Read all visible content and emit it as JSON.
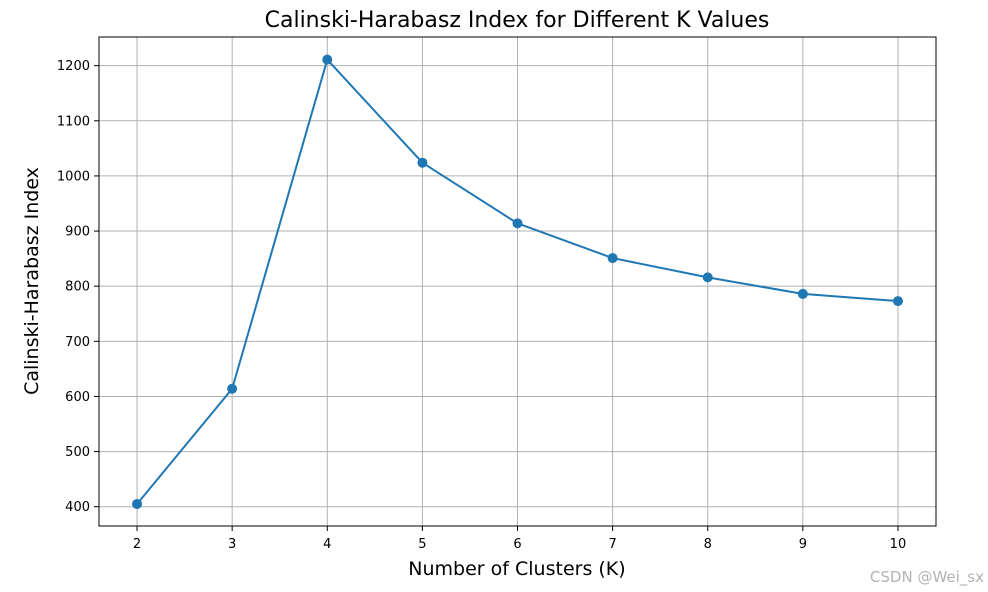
{
  "chart_data": {
    "type": "line",
    "title": "Calinski-Harabasz Index for Different K Values",
    "xlabel": "Number of Clusters (K)",
    "ylabel": "Calinski-Harabasz Index",
    "x": [
      2,
      3,
      4,
      5,
      6,
      7,
      8,
      9,
      10
    ],
    "series": [
      {
        "values": [
          405,
          614,
          1211,
          1024,
          914,
          851,
          816,
          786,
          773
        ],
        "color": "#1f77b4",
        "marker": "circle"
      }
    ],
    "x_ticks": [
      "2",
      "3",
      "4",
      "5",
      "6",
      "7",
      "8",
      "9",
      "10"
    ],
    "y_ticks": [
      "400",
      "500",
      "600",
      "700",
      "800",
      "900",
      "1000",
      "1100",
      "1200"
    ],
    "xlim": [
      1.6,
      10.4
    ],
    "ylim": [
      365,
      1252
    ],
    "grid": true,
    "legend": "none"
  },
  "watermark": "CSDN @Wei_sx"
}
